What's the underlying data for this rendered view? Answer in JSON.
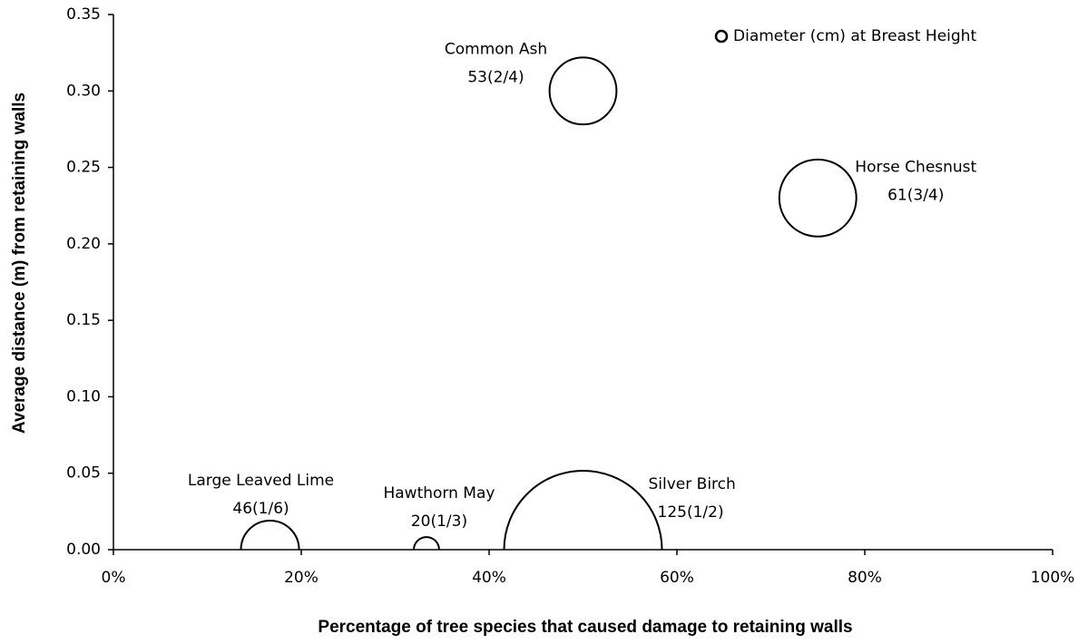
{
  "chart_data": {
    "type": "bubble",
    "xlabel": "Percentage of tree species that caused damage to retaining walls",
    "ylabel": "Average distance (m) from retaining walls",
    "xlim": [
      0,
      100
    ],
    "xticks": [
      {
        "value": 0,
        "label": "0%"
      },
      {
        "value": 20,
        "label": "20%"
      },
      {
        "value": 40,
        "label": "40%"
      },
      {
        "value": 60,
        "label": "60%"
      },
      {
        "value": 80,
        "label": "80%"
      },
      {
        "value": 100,
        "label": "100%"
      }
    ],
    "ylim": [
      0,
      0.35
    ],
    "yticks": [
      {
        "value": 0,
        "label": "0.00"
      },
      {
        "value": 0.05,
        "label": "0.05"
      },
      {
        "value": 0.1,
        "label": "0.10"
      },
      {
        "value": 0.15,
        "label": "0.15"
      },
      {
        "value": 0.2,
        "label": "0.20"
      },
      {
        "value": 0.25,
        "label": "0.25"
      },
      {
        "value": 0.3,
        "label": "0.30"
      },
      {
        "value": 0.35,
        "label": "0.35"
      }
    ],
    "legend": "top-right",
    "series": [
      {
        "name": "Diameter (cm) at Breast Height",
        "color": "#000000",
        "labels": [
          "Large Leaved Lime",
          "Hawthorn May",
          "Silver Birch",
          "Common Ash",
          "Horse Chesnust"
        ],
        "x": [
          16.67,
          33.33,
          50,
          50,
          75
        ],
        "values": [
          0,
          0,
          0,
          0.3,
          0.23
        ],
        "sizes": [
          46,
          20,
          125,
          53,
          61
        ],
        "size_labels": [
          "46(1/6)",
          "20(1/3)",
          "125(1/2)",
          "53(2/4)",
          "61(3/4)"
        ]
      }
    ]
  }
}
